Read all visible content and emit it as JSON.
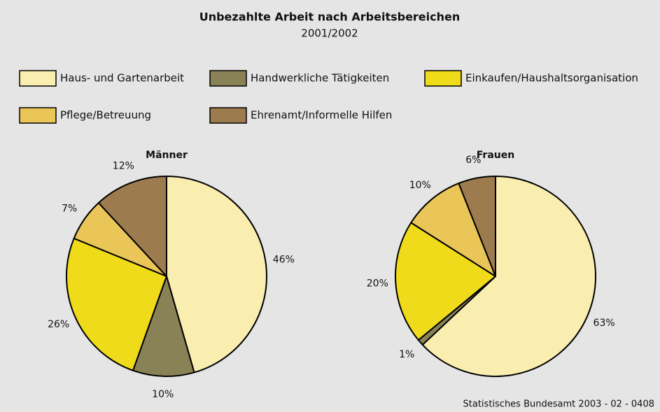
{
  "title": "Unbezahlte Arbeit nach Arbeitsbereichen",
  "subtitle": "2001/2002",
  "source": "Statistisches Bundesamt 2003 - 02 - 0408",
  "chart_data": [
    {
      "type": "pie",
      "title": "Männer",
      "categories": [
        "Haus- und Gartenarbeit",
        "Handwerkliche Tätigkeiten",
        "Einkaufen/Haushaltsorganisation",
        "Pflege/Betreuung",
        "Ehrenamt/Informelle Hilfen"
      ],
      "values": [
        46,
        10,
        26,
        7,
        12
      ],
      "value_labels": [
        "46%",
        "10%",
        "26%",
        "7%",
        "12%"
      ],
      "colors": [
        "#f9edb0",
        "#8a8257",
        "#efdb1a",
        "#e9c657",
        "#9c7c4e"
      ]
    },
    {
      "type": "pie",
      "title": "Frauen",
      "categories": [
        "Haus- und Gartenarbeit",
        "Handwerkliche Tätigkeiten",
        "Einkaufen/Haushaltsorganisation",
        "Pflege/Betreuung",
        "Ehrenamt/Informelle Hilfen"
      ],
      "values": [
        63,
        1,
        20,
        10,
        6
      ],
      "value_labels": [
        "63%",
        "1%",
        "20%",
        "10%",
        "6%"
      ],
      "colors": [
        "#f9edb0",
        "#8a8257",
        "#efdb1a",
        "#e9c657",
        "#9c7c4e"
      ]
    }
  ]
}
